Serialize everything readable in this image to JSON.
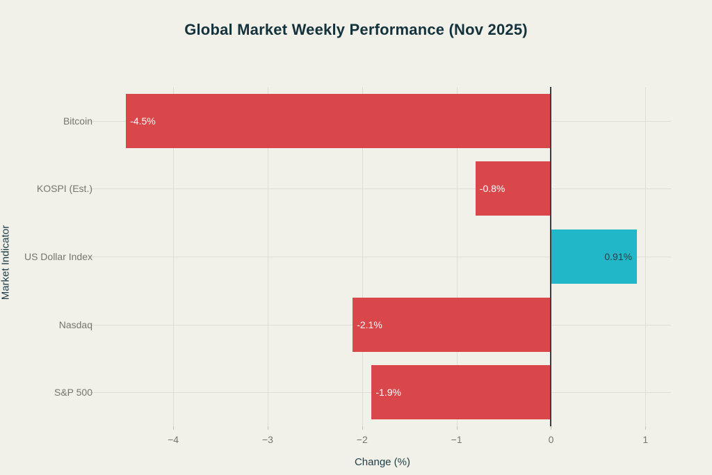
{
  "chart_data": {
    "type": "bar",
    "orientation": "horizontal",
    "title": "Global Market Weekly Performance (Nov 2025)",
    "xlabel": "Change (%)",
    "ylabel": "Market Indicator",
    "categories": [
      "Bitcoin",
      "KOSPI (Est.)",
      "US Dollar Index",
      "Nasdaq",
      "S&P 500"
    ],
    "values": [
      -4.5,
      -0.8,
      0.91,
      -2.1,
      -1.9
    ],
    "bar_labels": [
      "-4.5%",
      "-0.8%",
      "0.91%",
      "-2.1%",
      "-1.9%"
    ],
    "xticks": [
      -4,
      -3,
      -2,
      -1,
      0,
      1
    ],
    "xtick_labels": [
      "−4",
      "−3",
      "−2",
      "−1",
      "0",
      "1"
    ],
    "xlim": [
      -4.84,
      1.27
    ],
    "grid": true,
    "legend": "none",
    "colors": {
      "negative_bar": "#d9474b",
      "positive_bar": "#21b7c9",
      "negative_bar_label": "#ffffff",
      "positive_bar_label": "#2e3d42",
      "background": "#f1f0e9",
      "gridline": "#deddd4",
      "zero_line": "#383f44",
      "title_text": "#14323c",
      "axis_title_text": "#1d3d46",
      "tick_label_text": "#75756e"
    }
  }
}
